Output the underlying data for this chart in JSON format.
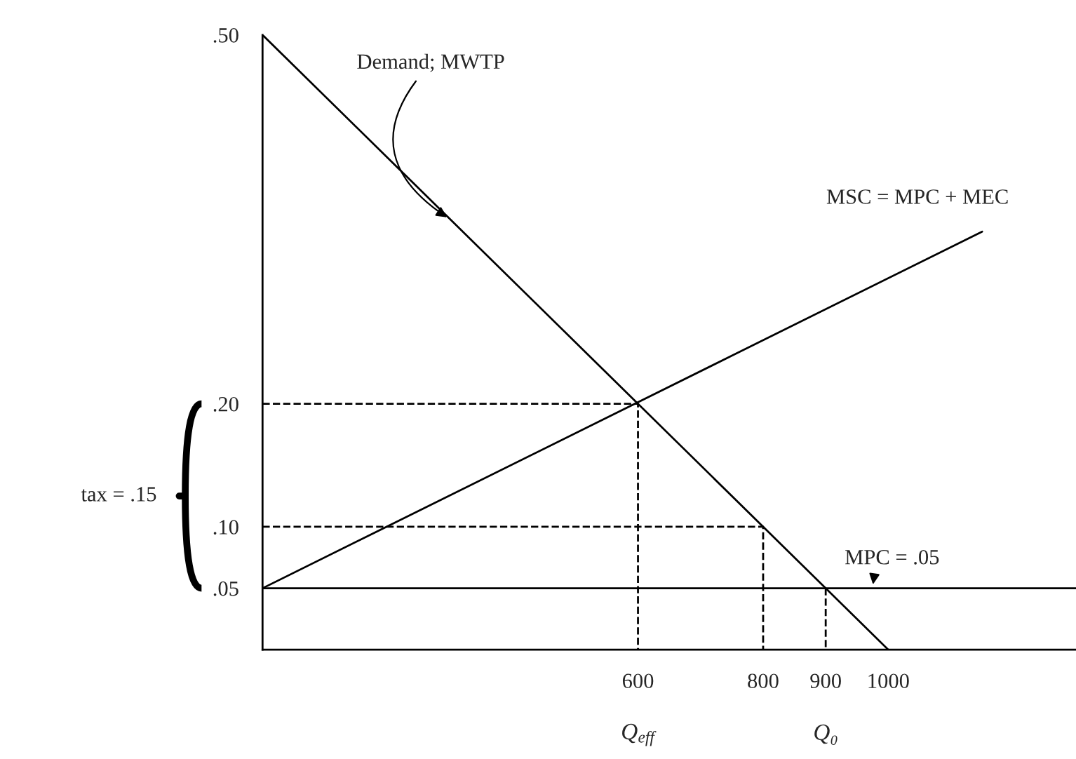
{
  "chart_data": {
    "type": "line",
    "series": [
      {
        "name": "Demand; MWTP",
        "color": "#000000",
        "x": [
          0,
          1000
        ],
        "values": [
          0.5,
          0.0
        ],
        "line_style": "solid"
      },
      {
        "name": "MSC = MPC + MEC",
        "color": "#000000",
        "x": [
          0,
          1150
        ],
        "values": [
          0.05,
          0.34
        ],
        "line_style": "solid"
      },
      {
        "name": "MPC = .05",
        "color": "#000000",
        "x": [
          0,
          1300
        ],
        "values": [
          0.05,
          0.05
        ],
        "line_style": "solid"
      },
      {
        "color": "#000000",
        "x": [
          0,
          600,
          600
        ],
        "values": [
          0.2,
          0.2,
          0.0
        ],
        "line_style": "dashed"
      },
      {
        "color": "#000000",
        "x": [
          0,
          800,
          800
        ],
        "values": [
          0.1,
          0.1,
          0.0
        ],
        "line_style": "dashed"
      },
      {
        "color": "#000000",
        "x": [
          900,
          900
        ],
        "values": [
          0.05,
          0.0
        ],
        "line_style": "dashed"
      }
    ],
    "xlim": [
      0,
      1300
    ],
    "ylim": [
      0,
      0.5
    ],
    "xticks": [
      600,
      800,
      900,
      1000
    ],
    "yticks": [
      {
        "value": 0.05,
        "label": ".05"
      },
      {
        "value": 0.1,
        "label": ".10"
      },
      {
        "value": 0.2,
        "label": ".20"
      },
      {
        "value": 0.5,
        "label": ".50"
      }
    ],
    "annotations": [
      "tax = .15",
      "Q$_{eff}$",
      "Q₀"
    ],
    "grid": false,
    "legend": false,
    "marker": "none"
  }
}
